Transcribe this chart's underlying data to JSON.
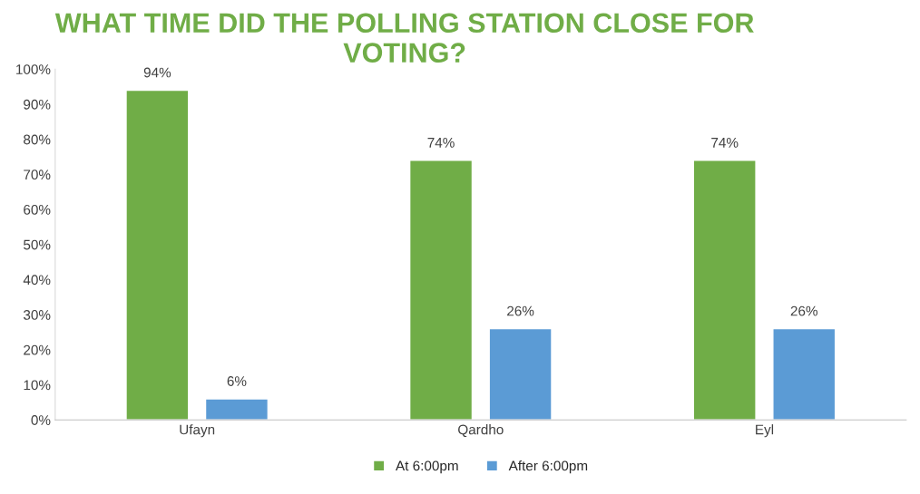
{
  "chart_data": {
    "type": "bar",
    "title": "WHAT TIME DID THE POLLING STATION CLOSE FOR VOTING?",
    "categories": [
      "Ufayn",
      "Qardho",
      "Eyl"
    ],
    "series": [
      {
        "name": "At 6:00pm",
        "color": "#70ad47",
        "values": [
          94,
          74,
          74
        ],
        "value_labels": [
          "94%",
          "74%",
          "74%"
        ]
      },
      {
        "name": "After 6:00pm",
        "color": "#5b9bd5",
        "values": [
          6,
          26,
          26
        ],
        "value_labels": [
          "6%",
          "26%",
          "26%"
        ]
      }
    ],
    "ylim": [
      0,
      100
    ],
    "yticks": [
      {
        "value": 0,
        "label": "0%"
      },
      {
        "value": 10,
        "label": "10%"
      },
      {
        "value": 20,
        "label": "20%"
      },
      {
        "value": 30,
        "label": "30%"
      },
      {
        "value": 40,
        "label": "40%"
      },
      {
        "value": 50,
        "label": "50%"
      },
      {
        "value": 60,
        "label": "60%"
      },
      {
        "value": 70,
        "label": "70%"
      },
      {
        "value": 80,
        "label": "80%"
      },
      {
        "value": 90,
        "label": "90%"
      },
      {
        "value": 100,
        "label": "100%"
      }
    ],
    "grid": false,
    "legend": "bottom"
  }
}
